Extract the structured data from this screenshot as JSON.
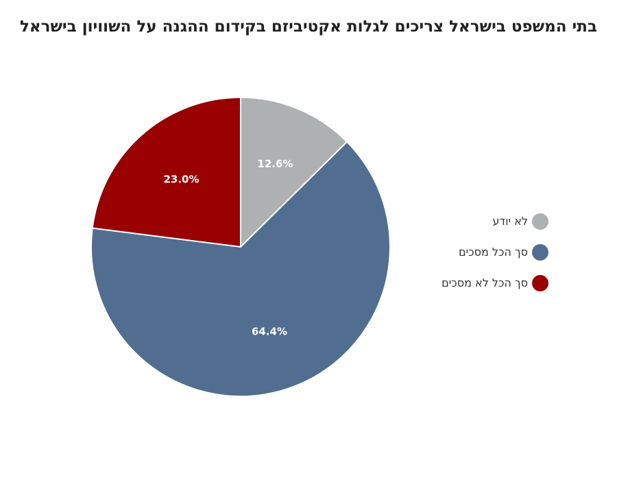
{
  "chart_data": {
    "type": "pie",
    "title": "בתי המשפט בישראל צריכים לגלות אקטיביזם בקידום ההגנה על השוויון בישראל",
    "categories": [
      "לא יודע",
      "סך הכל מסכים",
      "סך הכל לא מסכים"
    ],
    "values": [
      12.6,
      64.4,
      23.0
    ],
    "value_labels": [
      "12.6%",
      "64.4%",
      "23.0%"
    ],
    "colors": [
      "#adb1b1",
      "#516e90",
      "#990000"
    ],
    "legend_position": "right"
  }
}
